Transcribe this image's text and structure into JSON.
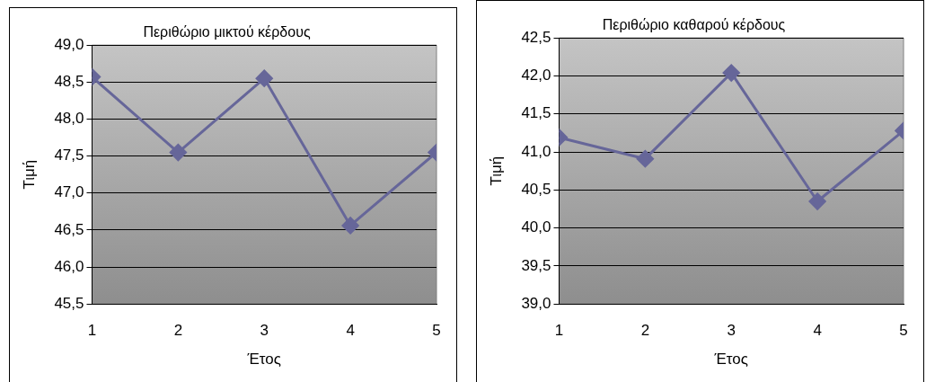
{
  "chart_data": [
    {
      "type": "line",
      "title": "Περιθώριο μικτού κέρδους",
      "xlabel": "Έτος",
      "ylabel": "Τιμή",
      "x": [
        1,
        2,
        3,
        4,
        5
      ],
      "series": [
        {
          "color": "#666699",
          "values": [
            48.57,
            47.55,
            48.55,
            46.56,
            47.55
          ]
        }
      ],
      "xlim": [
        1,
        5
      ],
      "xticks": [
        1,
        2,
        3,
        4,
        5
      ],
      "ylim": [
        45.5,
        49
      ],
      "yticks": [
        {
          "value": 45.5,
          "label": "45,5"
        },
        {
          "value": 46,
          "label": "46,0"
        },
        {
          "value": 46.5,
          "label": "46,5"
        },
        {
          "value": 47,
          "label": "47,0"
        },
        {
          "value": 47.5,
          "label": "47,5"
        },
        {
          "value": 48,
          "label": "48,0"
        },
        {
          "value": 48.5,
          "label": "48,5"
        },
        {
          "value": 49,
          "label": "49,0"
        }
      ],
      "grid": "y",
      "legend": false,
      "marker": "diamond",
      "line_style": "solid"
    },
    {
      "type": "line",
      "title": "Περιθώριο καθαρού κέρδους",
      "xlabel": "Έτος",
      "ylabel": "Τιμή",
      "x": [
        1,
        2,
        3,
        4,
        5
      ],
      "series": [
        {
          "color": "#666699",
          "values": [
            41.19,
            40.91,
            42.04,
            40.35,
            41.28
          ]
        }
      ],
      "xlim": [
        1,
        5
      ],
      "xticks": [
        1,
        2,
        3,
        4,
        5
      ],
      "ylim": [
        39,
        42.5
      ],
      "yticks": [
        {
          "value": 39,
          "label": "39,0"
        },
        {
          "value": 39.5,
          "label": "39,5"
        },
        {
          "value": 40,
          "label": "40,0"
        },
        {
          "value": 40.5,
          "label": "40,5"
        },
        {
          "value": 41,
          "label": "41,0"
        },
        {
          "value": 41.5,
          "label": "41,5"
        },
        {
          "value": 42,
          "label": "42,0"
        },
        {
          "value": 42.5,
          "label": "42,5"
        }
      ],
      "grid": "y",
      "legend": false,
      "marker": "diamond",
      "line_style": "solid"
    }
  ]
}
